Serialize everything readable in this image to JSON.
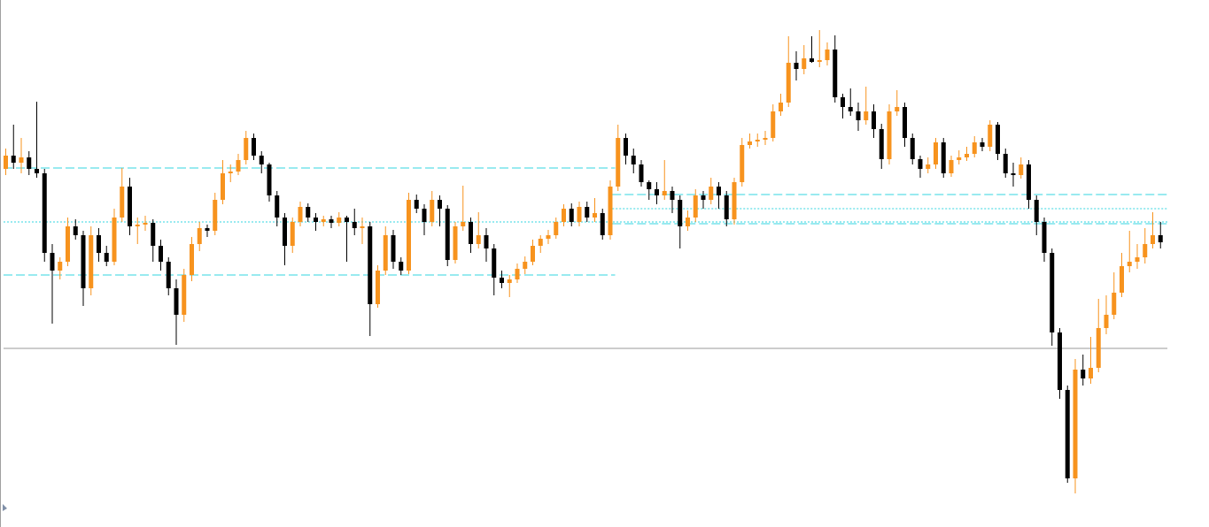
{
  "chart_data": {
    "type": "candlestick",
    "ylim": [
      0,
      596
    ],
    "up_color": "#f7931e",
    "down_color": "#000000",
    "ohlc": [
      [
        405,
        428,
        398,
        420
      ],
      [
        420,
        455,
        405,
        412
      ],
      [
        412,
        440,
        400,
        418
      ],
      [
        418,
        425,
        398,
        405
      ],
      [
        405,
        481,
        395,
        400
      ],
      [
        400,
        405,
        300,
        310
      ],
      [
        310,
        320,
        230,
        290
      ],
      [
        290,
        305,
        280,
        300
      ],
      [
        300,
        350,
        295,
        340
      ],
      [
        340,
        348,
        325,
        330
      ],
      [
        330,
        335,
        250,
        270
      ],
      [
        270,
        340,
        262,
        330
      ],
      [
        330,
        338,
        300,
        310
      ],
      [
        310,
        318,
        295,
        300
      ],
      [
        300,
        360,
        296,
        350
      ],
      [
        350,
        406,
        345,
        385
      ],
      [
        385,
        395,
        330,
        340
      ],
      [
        340,
        350,
        320,
        342
      ],
      [
        342,
        352,
        335,
        344
      ],
      [
        344,
        348,
        300,
        318
      ],
      [
        318,
        325,
        290,
        300
      ],
      [
        300,
        305,
        262,
        270
      ],
      [
        270,
        280,
        206,
        240
      ],
      [
        240,
        292,
        232,
        285
      ],
      [
        285,
        328,
        278,
        320
      ],
      [
        320,
        345,
        312,
        338
      ],
      [
        338,
        342,
        328,
        335
      ],
      [
        335,
        378,
        330,
        370
      ],
      [
        370,
        415,
        365,
        400
      ],
      [
        400,
        410,
        390,
        402
      ],
      [
        402,
        422,
        398,
        415
      ],
      [
        415,
        448,
        410,
        440
      ],
      [
        440,
        445,
        415,
        420
      ],
      [
        420,
        425,
        400,
        410
      ],
      [
        410,
        412,
        368,
        375
      ],
      [
        375,
        380,
        340,
        350
      ],
      [
        350,
        355,
        296,
        318
      ],
      [
        318,
        350,
        310,
        345
      ],
      [
        345,
        368,
        340,
        362
      ],
      [
        362,
        366,
        345,
        350
      ],
      [
        350,
        355,
        335,
        345
      ],
      [
        345,
        352,
        340,
        348
      ],
      [
        348,
        352,
        338,
        344
      ],
      [
        344,
        356,
        340,
        350
      ],
      [
        350,
        352,
        300,
        345
      ],
      [
        345,
        360,
        330,
        338
      ],
      [
        338,
        350,
        320,
        340
      ],
      [
        340,
        345,
        216,
        252
      ],
      [
        252,
        296,
        248,
        290
      ],
      [
        290,
        340,
        285,
        330
      ],
      [
        330,
        336,
        292,
        300
      ],
      [
        300,
        305,
        285,
        290
      ],
      [
        290,
        378,
        286,
        370
      ],
      [
        370,
        376,
        355,
        360
      ],
      [
        360,
        365,
        330,
        345
      ],
      [
        345,
        380,
        340,
        370
      ],
      [
        370,
        375,
        340,
        360
      ],
      [
        360,
        364,
        295,
        302
      ],
      [
        302,
        345,
        298,
        340
      ],
      [
        340,
        386,
        335,
        345
      ],
      [
        345,
        350,
        310,
        320
      ],
      [
        320,
        356,
        315,
        330
      ],
      [
        330,
        338,
        300,
        315
      ],
      [
        315,
        320,
        262,
        282
      ],
      [
        282,
        290,
        270,
        276
      ],
      [
        276,
        285,
        260,
        280
      ],
      [
        280,
        298,
        276,
        292
      ],
      [
        292,
        306,
        286,
        300
      ],
      [
        300,
        325,
        296,
        318
      ],
      [
        318,
        330,
        310,
        326
      ],
      [
        326,
        336,
        320,
        330
      ],
      [
        330,
        350,
        326,
        345
      ],
      [
        345,
        365,
        340,
        360
      ],
      [
        360,
        366,
        340,
        345
      ],
      [
        345,
        368,
        340,
        362
      ],
      [
        362,
        368,
        345,
        350
      ],
      [
        350,
        372,
        345,
        355
      ],
      [
        355,
        360,
        325,
        330
      ],
      [
        330,
        392,
        325,
        385
      ],
      [
        385,
        455,
        380,
        440
      ],
      [
        440,
        445,
        410,
        420
      ],
      [
        420,
        428,
        400,
        410
      ],
      [
        410,
        415,
        385,
        390
      ],
      [
        390,
        392,
        370,
        382
      ],
      [
        382,
        390,
        365,
        375
      ],
      [
        375,
        415,
        370,
        380
      ],
      [
        380,
        385,
        355,
        370
      ],
      [
        370,
        375,
        315,
        340
      ],
      [
        340,
        358,
        335,
        350
      ],
      [
        350,
        382,
        345,
        375
      ],
      [
        375,
        380,
        360,
        370
      ],
      [
        370,
        395,
        365,
        385
      ],
      [
        385,
        390,
        360,
        375
      ],
      [
        375,
        380,
        340,
        348
      ],
      [
        348,
        395,
        342,
        390
      ],
      [
        390,
        440,
        385,
        432
      ],
      [
        432,
        445,
        428,
        436
      ],
      [
        436,
        445,
        430,
        438
      ],
      [
        438,
        448,
        432,
        440
      ],
      [
        440,
        478,
        436,
        470
      ],
      [
        470,
        490,
        465,
        480
      ],
      [
        480,
        555,
        475,
        525
      ],
      [
        525,
        538,
        505,
        518
      ],
      [
        518,
        545,
        512,
        530
      ],
      [
        530,
        555,
        525,
        526
      ],
      [
        526,
        562,
        520,
        528
      ],
      [
        528,
        548,
        522,
        540
      ],
      [
        540,
        556,
        480,
        486
      ],
      [
        486,
        490,
        462,
        475
      ],
      [
        475,
        496,
        465,
        470
      ],
      [
        470,
        480,
        448,
        460
      ],
      [
        460,
        498,
        455,
        470
      ],
      [
        470,
        478,
        440,
        450
      ],
      [
        450,
        456,
        405,
        416
      ],
      [
        416,
        478,
        410,
        470
      ],
      [
        470,
        494,
        465,
        475
      ],
      [
        475,
        480,
        430,
        440
      ],
      [
        440,
        445,
        410,
        416
      ],
      [
        416,
        420,
        395,
        405
      ],
      [
        405,
        418,
        400,
        410
      ],
      [
        410,
        440,
        405,
        435
      ],
      [
        435,
        440,
        395,
        400
      ],
      [
        400,
        420,
        396,
        415
      ],
      [
        415,
        426,
        410,
        418
      ],
      [
        418,
        430,
        414,
        422
      ],
      [
        422,
        442,
        418,
        435
      ],
      [
        435,
        440,
        425,
        430
      ],
      [
        430,
        460,
        425,
        455
      ],
      [
        455,
        458,
        415,
        422
      ],
      [
        422,
        428,
        395,
        400
      ],
      [
        400,
        412,
        385,
        398
      ],
      [
        398,
        418,
        394,
        410
      ],
      [
        410,
        415,
        360,
        370
      ],
      [
        370,
        375,
        330,
        345
      ],
      [
        345,
        350,
        300,
        310
      ],
      [
        310,
        315,
        205,
        220
      ],
      [
        220,
        225,
        145,
        155
      ],
      [
        155,
        160,
        50,
        55
      ],
      [
        55,
        190,
        38,
        178
      ],
      [
        178,
        195,
        160,
        168
      ],
      [
        168,
        215,
        162,
        180
      ],
      [
        180,
        258,
        175,
        225
      ],
      [
        225,
        262,
        218,
        240
      ],
      [
        240,
        288,
        235,
        265
      ],
      [
        265,
        310,
        260,
        295
      ],
      [
        295,
        335,
        288,
        300
      ],
      [
        300,
        320,
        292,
        305
      ],
      [
        305,
        338,
        298,
        320
      ],
      [
        320,
        356,
        315,
        330
      ],
      [
        330,
        345,
        315,
        322
      ]
    ],
    "levels": [
      {
        "value": 406,
        "color": "#33d6e0",
        "style": "dashed",
        "start": 0,
        "end": 78
      },
      {
        "value": 285,
        "color": "#33d6e0",
        "style": "dashed",
        "start": 0,
        "end": 78
      },
      {
        "value": 345,
        "color": "#33d6e0",
        "style": "dotted",
        "start": 0,
        "end": 149
      },
      {
        "value": 376,
        "color": "#33d6e0",
        "style": "dashed",
        "start": 79,
        "end": 149
      },
      {
        "value": 343,
        "color": "#33d6e0",
        "style": "dashed",
        "start": 79,
        "end": 149
      },
      {
        "value": 360,
        "color": "#33d6e0",
        "style": "dotted",
        "start": 79,
        "end": 149
      },
      {
        "value": 202,
        "color": "#9a9a9a",
        "style": "solid",
        "start": 0,
        "end": 149
      }
    ]
  }
}
